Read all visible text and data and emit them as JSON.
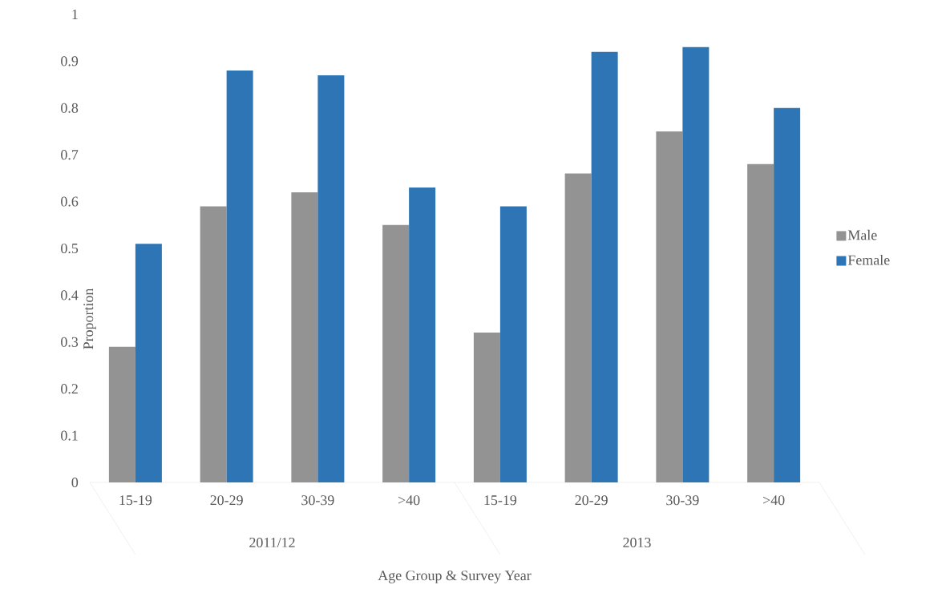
{
  "chart_data": {
    "type": "bar",
    "xlabel": "Age Group & Survey Year",
    "ylabel": "Proportion",
    "categories": [
      "15-19",
      "20-29",
      "30-39",
      ">40",
      "15-19",
      "20-29",
      "30-39",
      ">40"
    ],
    "series": [
      {
        "name": "Male",
        "color": "#939393",
        "values": [
          0.29,
          0.59,
          0.62,
          0.55,
          0.32,
          0.66,
          0.75,
          0.68
        ]
      },
      {
        "name": "Female",
        "color": "#2e75b6",
        "values": [
          0.51,
          0.88,
          0.87,
          0.63,
          0.59,
          0.92,
          0.93,
          0.8
        ]
      }
    ],
    "annotations": [
      "2011/12",
      "2013"
    ],
    "ylim": [
      0,
      1
    ],
    "yticks": [
      0,
      0.1,
      0.2,
      0.3,
      0.4,
      0.5,
      0.6,
      0.7,
      0.8,
      0.9,
      1
    ],
    "legend": "right",
    "grid": false
  }
}
